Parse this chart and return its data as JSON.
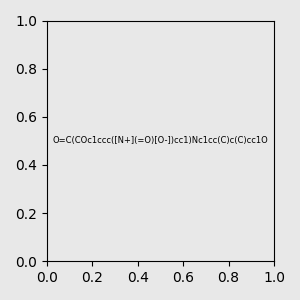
{
  "smiles": "O=C(COc1ccc([N+](=O)[O-])cc1)Nc1cc(C)c(C)cc1O",
  "image_size": 300,
  "background_color": "#e8e8e8",
  "bond_color": "#000000",
  "atom_colors": {
    "N": "#0000ff",
    "O": "#ff0000",
    "C": "#000000"
  },
  "title": ""
}
